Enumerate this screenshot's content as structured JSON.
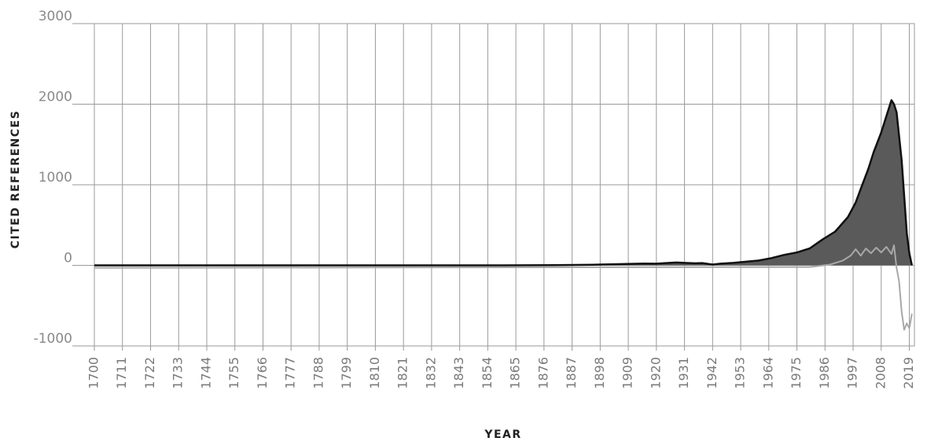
{
  "chart_data": {
    "type": "area",
    "title": "",
    "xlabel": "YEAR",
    "ylabel": "CITED REFERENCES",
    "xlim": [
      1700,
      2021
    ],
    "ylim": [
      -1000,
      3000
    ],
    "x_ticks": [
      "1700",
      "1711",
      "1722",
      "1733",
      "1744",
      "1755",
      "1766",
      "1777",
      "1788",
      "1799",
      "1810",
      "1821",
      "1832",
      "1843",
      "1854",
      "1865",
      "1876",
      "1887",
      "1898",
      "1909",
      "1920",
      "1931",
      "1942",
      "1953",
      "1964",
      "1975",
      "1986",
      "1997",
      "2008",
      "2019"
    ],
    "y_ticks": [
      "3000",
      "2000",
      "1000",
      "0",
      "-1000"
    ],
    "grid": true,
    "legend": "none",
    "series": [
      {
        "color": "#111111",
        "fill": "#5a5a5a",
        "x": [
          1700,
          1750,
          1800,
          1845,
          1860,
          1880,
          1895,
          1905,
          1915,
          1920,
          1925,
          1928,
          1931,
          1935,
          1938,
          1942,
          1945,
          1950,
          1955,
          1960,
          1965,
          1970,
          1975,
          1980,
          1985,
          1990,
          1995,
          1998,
          2000,
          2003,
          2005,
          2008,
          2010,
          2012,
          2013,
          2014,
          2016,
          2018,
          2019,
          2020
        ],
        "values": [
          0,
          0,
          0,
          0,
          0,
          3,
          8,
          15,
          22,
          20,
          30,
          35,
          30,
          25,
          28,
          10,
          20,
          30,
          45,
          60,
          90,
          130,
          160,
          210,
          320,
          420,
          600,
          780,
          950,
          1200,
          1400,
          1650,
          1850,
          2050,
          2000,
          1900,
          1300,
          400,
          150,
          0
        ]
      },
      {
        "color": "#a8a8a8",
        "x": [
          1700,
          1980,
          1988,
          1993,
          1996,
          1998,
          2000,
          2002,
          2004,
          2006,
          2008,
          2010,
          2012,
          2013,
          2014,
          2015,
          2016,
          2017,
          2018,
          2019,
          2020
        ],
        "values": [
          -30,
          -20,
          10,
          60,
          120,
          200,
          120,
          210,
          150,
          220,
          160,
          230,
          140,
          250,
          -30,
          -200,
          -580,
          -800,
          -720,
          -780,
          -600
        ]
      }
    ]
  }
}
